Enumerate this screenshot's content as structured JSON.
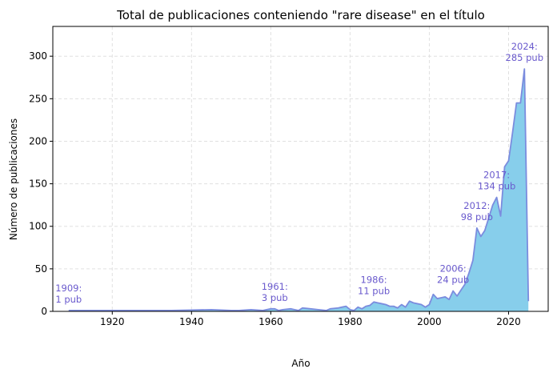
{
  "chart_data": {
    "type": "area",
    "title": "Total de publicaciones conteniendo \"rare disease\" en el título",
    "xlabel": "Año",
    "ylabel": "Número de publicaciones",
    "xlim": [
      1905,
      2030
    ],
    "ylim": [
      0,
      335
    ],
    "xticks": [
      1920,
      1940,
      1960,
      1980,
      2000,
      2020
    ],
    "yticks": [
      0,
      50,
      100,
      150,
      200,
      250,
      300
    ],
    "grid": true,
    "fill_color": "#87ceeb",
    "line_color": "#7b8cde",
    "annotation_color": "#6a5acd",
    "x": [
      1909,
      1920,
      1930,
      1935,
      1940,
      1945,
      1950,
      1952,
      1955,
      1958,
      1960,
      1961,
      1962,
      1963,
      1965,
      1966,
      1967,
      1968,
      1970,
      1972,
      1974,
      1975,
      1977,
      1978,
      1979,
      1980,
      1981,
      1982,
      1983,
      1984,
      1985,
      1986,
      1987,
      1988,
      1989,
      1990,
      1991,
      1992,
      1993,
      1994,
      1995,
      1996,
      1997,
      1998,
      1999,
      2000,
      2001,
      2002,
      2003,
      2004,
      2005,
      2006,
      2007,
      2008,
      2009,
      2010,
      2011,
      2012,
      2013,
      2014,
      2015,
      2016,
      2017,
      2018,
      2019,
      2020,
      2021,
      2022,
      2023,
      2024,
      2025
    ],
    "y": [
      1,
      1,
      1,
      1,
      1.5,
      2,
      1,
      1,
      2,
      1,
      3,
      3,
      1,
      2,
      3,
      2,
      1,
      4,
      3,
      2,
      1,
      3,
      4,
      5,
      6,
      2,
      1,
      5,
      3,
      6,
      7,
      11,
      10,
      9,
      8,
      6,
      6,
      4,
      8,
      5,
      12,
      10,
      9,
      8,
      5,
      8,
      20,
      15,
      16,
      17,
      14,
      24,
      18,
      25,
      32,
      45,
      60,
      98,
      88,
      95,
      110,
      125,
      134,
      112,
      170,
      177,
      210,
      245,
      245,
      285,
      12
    ],
    "annotations": [
      {
        "x": 1909,
        "y": 1,
        "label": "1909:\n1 pub"
      },
      {
        "x": 1961,
        "y": 3,
        "label": "1961:\n3 pub"
      },
      {
        "x": 1986,
        "y": 11,
        "label": "1986:\n11 pub"
      },
      {
        "x": 2006,
        "y": 24,
        "label": "2006:\n24 pub"
      },
      {
        "x": 2012,
        "y": 98,
        "label": "2012:\n98 pub"
      },
      {
        "x": 2017,
        "y": 134,
        "label": "2017:\n134 pub"
      },
      {
        "x": 2024,
        "y": 285,
        "label": "2024:\n285 pub"
      }
    ]
  }
}
